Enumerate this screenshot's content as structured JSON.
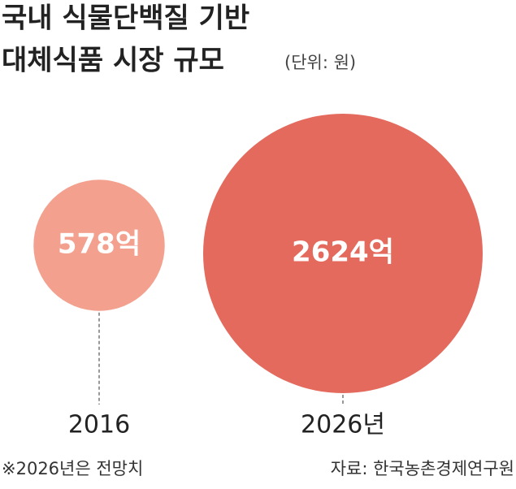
{
  "chart_data": {
    "type": "bubble",
    "title": [
      "국내 식물단백질 기반",
      "대체식품 시장 규모"
    ],
    "subtitle": "(단위: 원)",
    "categories": [
      "2016",
      "2026년"
    ],
    "values": [
      578,
      2624
    ],
    "value_labels": [
      "578억",
      "2624억"
    ],
    "colors": [
      "#f3a18e",
      "#e46a5e"
    ],
    "notes": [
      "※2026년은 전망치",
      "자료: 한국농촌경제연구원"
    ]
  }
}
